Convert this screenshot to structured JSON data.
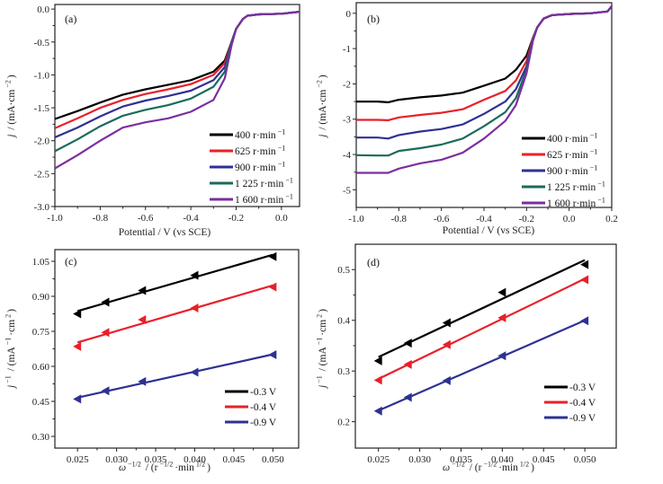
{
  "chart_data": [
    {
      "panel": "(a)",
      "type": "line",
      "xlabel": "Potential / V (vs SCE)",
      "ylabel": [
        {
          "t": "j",
          "i": true
        },
        {
          "t": " / (mA·cm"
        },
        {
          "t": "−2",
          "sup": true
        },
        {
          "t": ")"
        }
      ],
      "xlim": [
        -1.0,
        0.08
      ],
      "ylim": [
        -3.0,
        0.07
      ],
      "xticks": [
        -1.0,
        -0.8,
        -0.6,
        -0.4,
        -0.2,
        0.0
      ],
      "xtick_labels": [
        "-1.0",
        "-0.8",
        "-0.6",
        "-0.4",
        "-0.2",
        "0.0"
      ],
      "yticks": [
        0.0,
        -0.5,
        -1.0,
        -1.5,
        -2.0,
        -2.5,
        -3.0
      ],
      "ytick_labels": [
        "0.0",
        "-0.5",
        "-1.0",
        "-1.5",
        "-2.0",
        "-2.5",
        "-3.0"
      ],
      "legend": "lower-right",
      "x": [
        -1.0,
        -0.9,
        -0.8,
        -0.7,
        -0.6,
        -0.5,
        -0.4,
        -0.3,
        -0.25,
        -0.22,
        -0.2,
        -0.17,
        -0.15,
        -0.1,
        0.0,
        0.08
      ],
      "series": [
        {
          "name": "400 r·min",
          "sup": "−1",
          "color": "#000000",
          "values": [
            -1.67,
            -1.55,
            -1.42,
            -1.3,
            -1.22,
            -1.15,
            -1.08,
            -0.95,
            -0.78,
            -0.5,
            -0.3,
            -0.15,
            -0.1,
            -0.08,
            -0.07,
            -0.04
          ]
        },
        {
          "name": "625 r·min",
          "sup": "−1",
          "color": "#e8202a",
          "values": [
            -1.81,
            -1.66,
            -1.5,
            -1.38,
            -1.29,
            -1.22,
            -1.14,
            -1.0,
            -0.82,
            -0.5,
            -0.3,
            -0.15,
            -0.1,
            -0.08,
            -0.07,
            -0.04
          ]
        },
        {
          "name": "900 r·min",
          "sup": "−1",
          "color": "#2e3192",
          "values": [
            -1.95,
            -1.8,
            -1.63,
            -1.48,
            -1.39,
            -1.32,
            -1.24,
            -1.08,
            -0.88,
            -0.5,
            -0.3,
            -0.15,
            -0.1,
            -0.08,
            -0.07,
            -0.04
          ]
        },
        {
          "name": "1 225 r·min",
          "sup": "−1",
          "color": "#1a6b5a",
          "values": [
            -2.16,
            -1.98,
            -1.78,
            -1.62,
            -1.53,
            -1.46,
            -1.36,
            -1.18,
            -0.95,
            -0.52,
            -0.3,
            -0.15,
            -0.1,
            -0.08,
            -0.07,
            -0.04
          ]
        },
        {
          "name": "1 600 r·min",
          "sup": "−1",
          "color": "#7b2fa0",
          "values": [
            -2.42,
            -2.22,
            -2.0,
            -1.8,
            -1.72,
            -1.66,
            -1.56,
            -1.38,
            -1.05,
            -0.55,
            -0.3,
            -0.15,
            -0.1,
            -0.08,
            -0.07,
            -0.04
          ]
        }
      ]
    },
    {
      "panel": "(b)",
      "type": "line",
      "xlabel": "Potential / V (vs SCE)",
      "ylabel": [
        {
          "t": "j",
          "i": true
        },
        {
          "t": " / (mA·cm"
        },
        {
          "t": "−2",
          "sup": true
        },
        {
          "t": ")"
        }
      ],
      "xlim": [
        -1.0,
        0.2
      ],
      "ylim": [
        -5.5,
        0.3
      ],
      "xticks": [
        -1.0,
        -0.8,
        -0.6,
        -0.4,
        -0.2,
        0.0,
        0.2
      ],
      "xtick_labels": [
        "-1.0",
        "-0.8",
        "-0.6",
        "-0.4",
        "-0.2",
        "0.0",
        "0.2"
      ],
      "yticks": [
        0,
        -1,
        -2,
        -3,
        -4,
        -5
      ],
      "ytick_labels": [
        "0",
        "-1",
        "-2",
        "-3",
        "-4",
        "-5"
      ],
      "legend": "lower-right",
      "x": [
        -1.0,
        -0.9,
        -0.85,
        -0.8,
        -0.7,
        -0.6,
        -0.5,
        -0.4,
        -0.3,
        -0.25,
        -0.2,
        -0.17,
        -0.15,
        -0.12,
        -0.08,
        0.0,
        0.1,
        0.18,
        0.2
      ],
      "series": [
        {
          "name": "400 r·min",
          "sup": "−1",
          "color": "#000000",
          "values": [
            -2.5,
            -2.5,
            -2.52,
            -2.45,
            -2.38,
            -2.33,
            -2.25,
            -2.05,
            -1.85,
            -1.6,
            -1.2,
            -0.7,
            -0.4,
            -0.15,
            -0.05,
            -0.02,
            0.0,
            0.05,
            0.2
          ]
        },
        {
          "name": "625 r·min",
          "sup": "−1",
          "color": "#e8202a",
          "values": [
            -3.02,
            -3.02,
            -3.03,
            -2.95,
            -2.88,
            -2.82,
            -2.72,
            -2.45,
            -2.2,
            -1.9,
            -1.35,
            -0.7,
            -0.4,
            -0.15,
            -0.05,
            -0.02,
            0.0,
            0.05,
            0.2
          ]
        },
        {
          "name": "900 r·min",
          "sup": "−1",
          "color": "#2e3192",
          "values": [
            -3.52,
            -3.52,
            -3.55,
            -3.45,
            -3.35,
            -3.28,
            -3.15,
            -2.85,
            -2.5,
            -2.15,
            -1.5,
            -0.72,
            -0.4,
            -0.15,
            -0.05,
            -0.02,
            0.0,
            0.05,
            0.2
          ]
        },
        {
          "name": "1 225 r·min",
          "sup": "−1",
          "color": "#1a6b5a",
          "values": [
            -4.02,
            -4.03,
            -4.03,
            -3.9,
            -3.82,
            -3.72,
            -3.55,
            -3.2,
            -2.8,
            -2.4,
            -1.6,
            -0.75,
            -0.4,
            -0.15,
            -0.05,
            -0.02,
            0.0,
            0.05,
            0.2
          ]
        },
        {
          "name": "1 600 r·min",
          "sup": "−1",
          "color": "#7b2fa0",
          "values": [
            -4.52,
            -4.52,
            -4.52,
            -4.4,
            -4.25,
            -4.15,
            -3.95,
            -3.55,
            -3.05,
            -2.6,
            -1.7,
            -0.78,
            -0.4,
            -0.15,
            -0.05,
            -0.02,
            0.0,
            0.05,
            0.2
          ]
        }
      ]
    },
    {
      "panel": "(c)",
      "type": "scatter",
      "fit": "linear",
      "xlabel": [
        {
          "t": "ω",
          "i": true
        },
        {
          "t": "−1/2",
          "sup": true
        },
        {
          "t": " / (r"
        },
        {
          "t": "−1/2",
          "sup": true
        },
        {
          "t": "·min"
        },
        {
          "t": "1/2",
          "sup": true
        },
        {
          "t": ")"
        }
      ],
      "ylabel": [
        {
          "t": "j",
          "i": true
        },
        {
          "t": "−1",
          "sup": true
        },
        {
          "t": " / (mA"
        },
        {
          "t": "−1",
          "sup": true
        },
        {
          "t": "·cm"
        },
        {
          "t": "2",
          "sup": true
        },
        {
          "t": ")"
        }
      ],
      "xlim": [
        0.0221,
        0.0533
      ],
      "ylim": [
        0.25,
        1.1
      ],
      "xticks": [
        0.025,
        0.03,
        0.035,
        0.04,
        0.045,
        0.05
      ],
      "xtick_labels": [
        "0.025",
        "0.030",
        "0.035",
        "0.040",
        "0.045",
        "0.050"
      ],
      "yticks": [
        0.3,
        0.45,
        0.6,
        0.75,
        0.9,
        1.05
      ],
      "ytick_labels": [
        "0.30",
        "0.45",
        "0.60",
        "0.75",
        "0.90",
        "1.05"
      ],
      "legend": "lower-right",
      "x": [
        0.025,
        0.0286,
        0.0333,
        0.04,
        0.05
      ],
      "series": [
        {
          "name": "-0.3 V",
          "color": "#000000",
          "values": [
            0.825,
            0.875,
            0.925,
            0.99,
            1.07
          ]
        },
        {
          "name": "-0.4 V",
          "color": "#e8202a",
          "values": [
            0.685,
            0.745,
            0.8,
            0.85,
            0.94
          ]
        },
        {
          "name": "-0.9 V",
          "color": "#2e3192",
          "values": [
            0.46,
            0.495,
            0.535,
            0.575,
            0.65
          ]
        }
      ]
    },
    {
      "panel": "(d)",
      "type": "scatter",
      "fit": "linear",
      "xlabel": [
        {
          "t": "ω",
          "i": true
        },
        {
          "t": "−1/2",
          "sup": true
        },
        {
          "t": " / (r"
        },
        {
          "t": "−1/2",
          "sup": true
        },
        {
          "t": "·min"
        },
        {
          "t": "1/2",
          "sup": true
        },
        {
          "t": ")"
        }
      ],
      "ylabel": [
        {
          "t": "j",
          "i": true
        },
        {
          "t": "−1",
          "sup": true
        },
        {
          "t": " / (mA"
        },
        {
          "t": "−1",
          "sup": true
        },
        {
          "t": "·cm"
        },
        {
          "t": "2",
          "sup": true
        },
        {
          "t": ")"
        }
      ],
      "xlim": [
        0.0222,
        0.0538
      ],
      "ylim": [
        0.148,
        0.55
      ],
      "xticks": [
        0.025,
        0.03,
        0.035,
        0.04,
        0.045,
        0.05
      ],
      "xtick_labels": [
        "0.025",
        "0.030",
        "0.035",
        "0.040",
        "0.045",
        "0.050"
      ],
      "yticks": [
        0.2,
        0.3,
        0.4,
        0.5
      ],
      "ytick_labels": [
        "0.2",
        "0.3",
        "0.4",
        "0.5"
      ],
      "legend": "lower-right",
      "x": [
        0.025,
        0.0286,
        0.0333,
        0.04,
        0.05
      ],
      "series": [
        {
          "name": "-0.3 V",
          "color": "#000000",
          "values": [
            0.32,
            0.355,
            0.395,
            0.455,
            0.51
          ]
        },
        {
          "name": "-0.4 V",
          "color": "#e8202a",
          "values": [
            0.282,
            0.313,
            0.352,
            0.405,
            0.48
          ]
        },
        {
          "name": "-0.9 V",
          "color": "#2e3192",
          "values": [
            0.221,
            0.248,
            0.281,
            0.33,
            0.399
          ]
        }
      ]
    }
  ]
}
